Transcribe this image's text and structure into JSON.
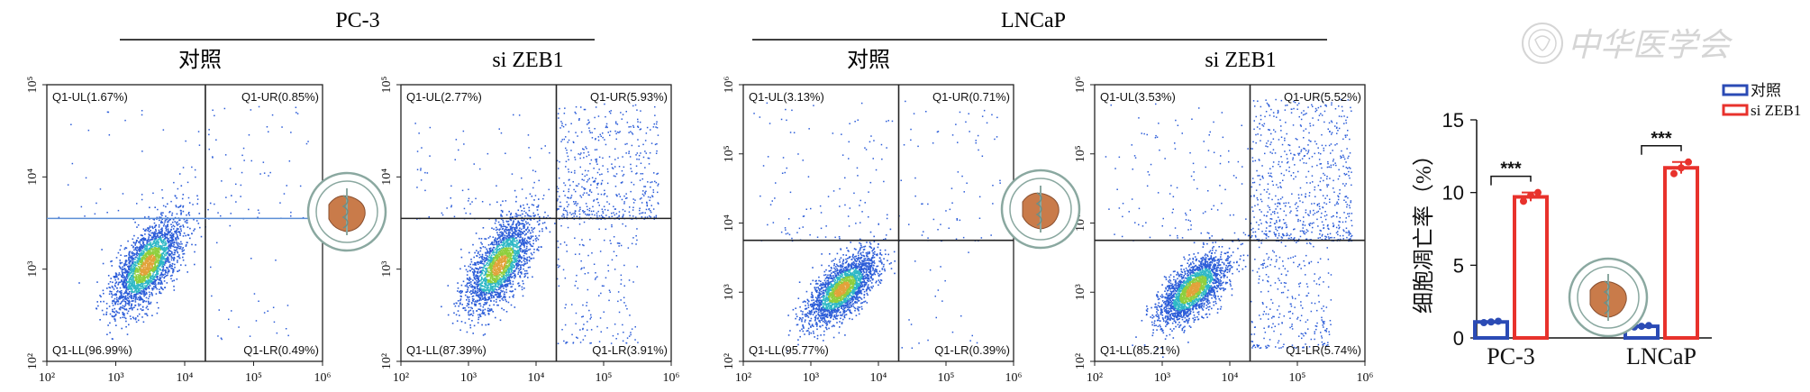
{
  "groups": [
    {
      "title": "PC-3"
    },
    {
      "title": "LNCaP"
    }
  ],
  "flow_panels": [
    {
      "condition": "对照",
      "cell_line": "PC-3",
      "ul": "Q1-UL(1.67%)",
      "ur": "Q1-UR(0.85%)",
      "ll": "Q1-LL(96.99%)",
      "lr": "Q1-LR(0.49%)",
      "y_ticks": [
        "10²",
        "10³",
        "10⁴",
        "10⁵"
      ],
      "x_ticks": [
        "10²",
        "10³",
        "10⁴",
        "10⁵",
        "10⁶"
      ],
      "gate_x_log": 4.3,
      "gate_y_log": 3.55,
      "y_range": [
        2,
        5
      ],
      "x_range": [
        2,
        6
      ],
      "gate_color": "#5b8ed6",
      "seed": 11,
      "n_pop": 2400,
      "n_ur": 60,
      "n_ul": 50,
      "n_lr": 25
    },
    {
      "condition": "si ZEB1",
      "cell_line": "PC-3",
      "ul": "Q1-UL(2.77%)",
      "ur": "Q1-UR(5.93%)",
      "ll": "Q1-LL(87.39%)",
      "lr": "Q1-LR(3.91%)",
      "y_ticks": [
        "10²",
        "10³",
        "10⁴",
        "10⁵"
      ],
      "x_ticks": [
        "10²",
        "10³",
        "10⁴",
        "10⁵",
        "10⁶"
      ],
      "gate_x_log": 4.3,
      "gate_y_log": 3.55,
      "y_range": [
        2,
        5
      ],
      "x_range": [
        2,
        6
      ],
      "gate_color": "#222222",
      "seed": 23,
      "n_pop": 2200,
      "n_ur": 520,
      "n_ul": 90,
      "n_lr": 160
    },
    {
      "condition": "对照",
      "cell_line": "LNCaP",
      "ul": "Q1-UL(3.13%)",
      "ur": "Q1-UR(0.71%)",
      "ll": "Q1-LL(95.77%)",
      "lr": "Q1-LR(0.39%)",
      "y_ticks": [
        "10²",
        "10³",
        "10⁴",
        "10⁵",
        "10⁶"
      ],
      "x_ticks": [
        "10²",
        "10³",
        "10⁴",
        "10⁵",
        "10⁶"
      ],
      "gate_x_log": 4.3,
      "gate_y_log": 3.75,
      "y_range": [
        2,
        6
      ],
      "x_range": [
        2,
        6
      ],
      "gate_color": "#222222",
      "seed": 37,
      "n_pop": 2300,
      "n_ur": 70,
      "n_ul": 110,
      "n_lr": 20
    },
    {
      "condition": "si ZEB1",
      "cell_line": "LNCaP",
      "ul": "Q1-UL(3.53%)",
      "ur": "Q1-UR(5.52%)",
      "ll": "Q1-LL(85.21%)",
      "lr": "Q1-LR(5.74%)",
      "y_ticks": [
        "10²",
        "10³",
        "10⁴",
        "10⁵",
        "10⁶"
      ],
      "x_ticks": [
        "10²",
        "10³",
        "10⁴",
        "10⁵",
        "10⁶"
      ],
      "gate_x_log": 4.3,
      "gate_y_log": 3.75,
      "y_range": [
        2,
        6
      ],
      "x_range": [
        2,
        6
      ],
      "gate_color": "#222222",
      "seed": 53,
      "n_pop": 2300,
      "n_ur": 700,
      "n_ul": 120,
      "n_lr": 260
    }
  ],
  "chart_data": {
    "type": "bar",
    "categories": [
      "PC-3",
      "LNCaP"
    ],
    "series": [
      {
        "name": "对照",
        "values": [
          1.1,
          0.8
        ],
        "color": "#2b4bb5",
        "points": [
          [
            1.05,
            1.1,
            1.15
          ],
          [
            0.75,
            0.8,
            0.85
          ]
        ]
      },
      {
        "name": "si ZEB1",
        "values": [
          9.7,
          11.7
        ],
        "color": "#e8322c",
        "points": [
          [
            9.4,
            9.8,
            10.0
          ],
          [
            11.3,
            11.7,
            12.1
          ]
        ]
      }
    ],
    "ylabel": "细胞凋亡率（%）",
    "ylim": [
      0,
      15
    ],
    "yticks": [
      "0",
      "5",
      "10",
      "15"
    ],
    "significance": [
      "***",
      "***"
    ],
    "legend_placement": "top-right"
  },
  "watermark": {
    "text": "中华医学会"
  }
}
